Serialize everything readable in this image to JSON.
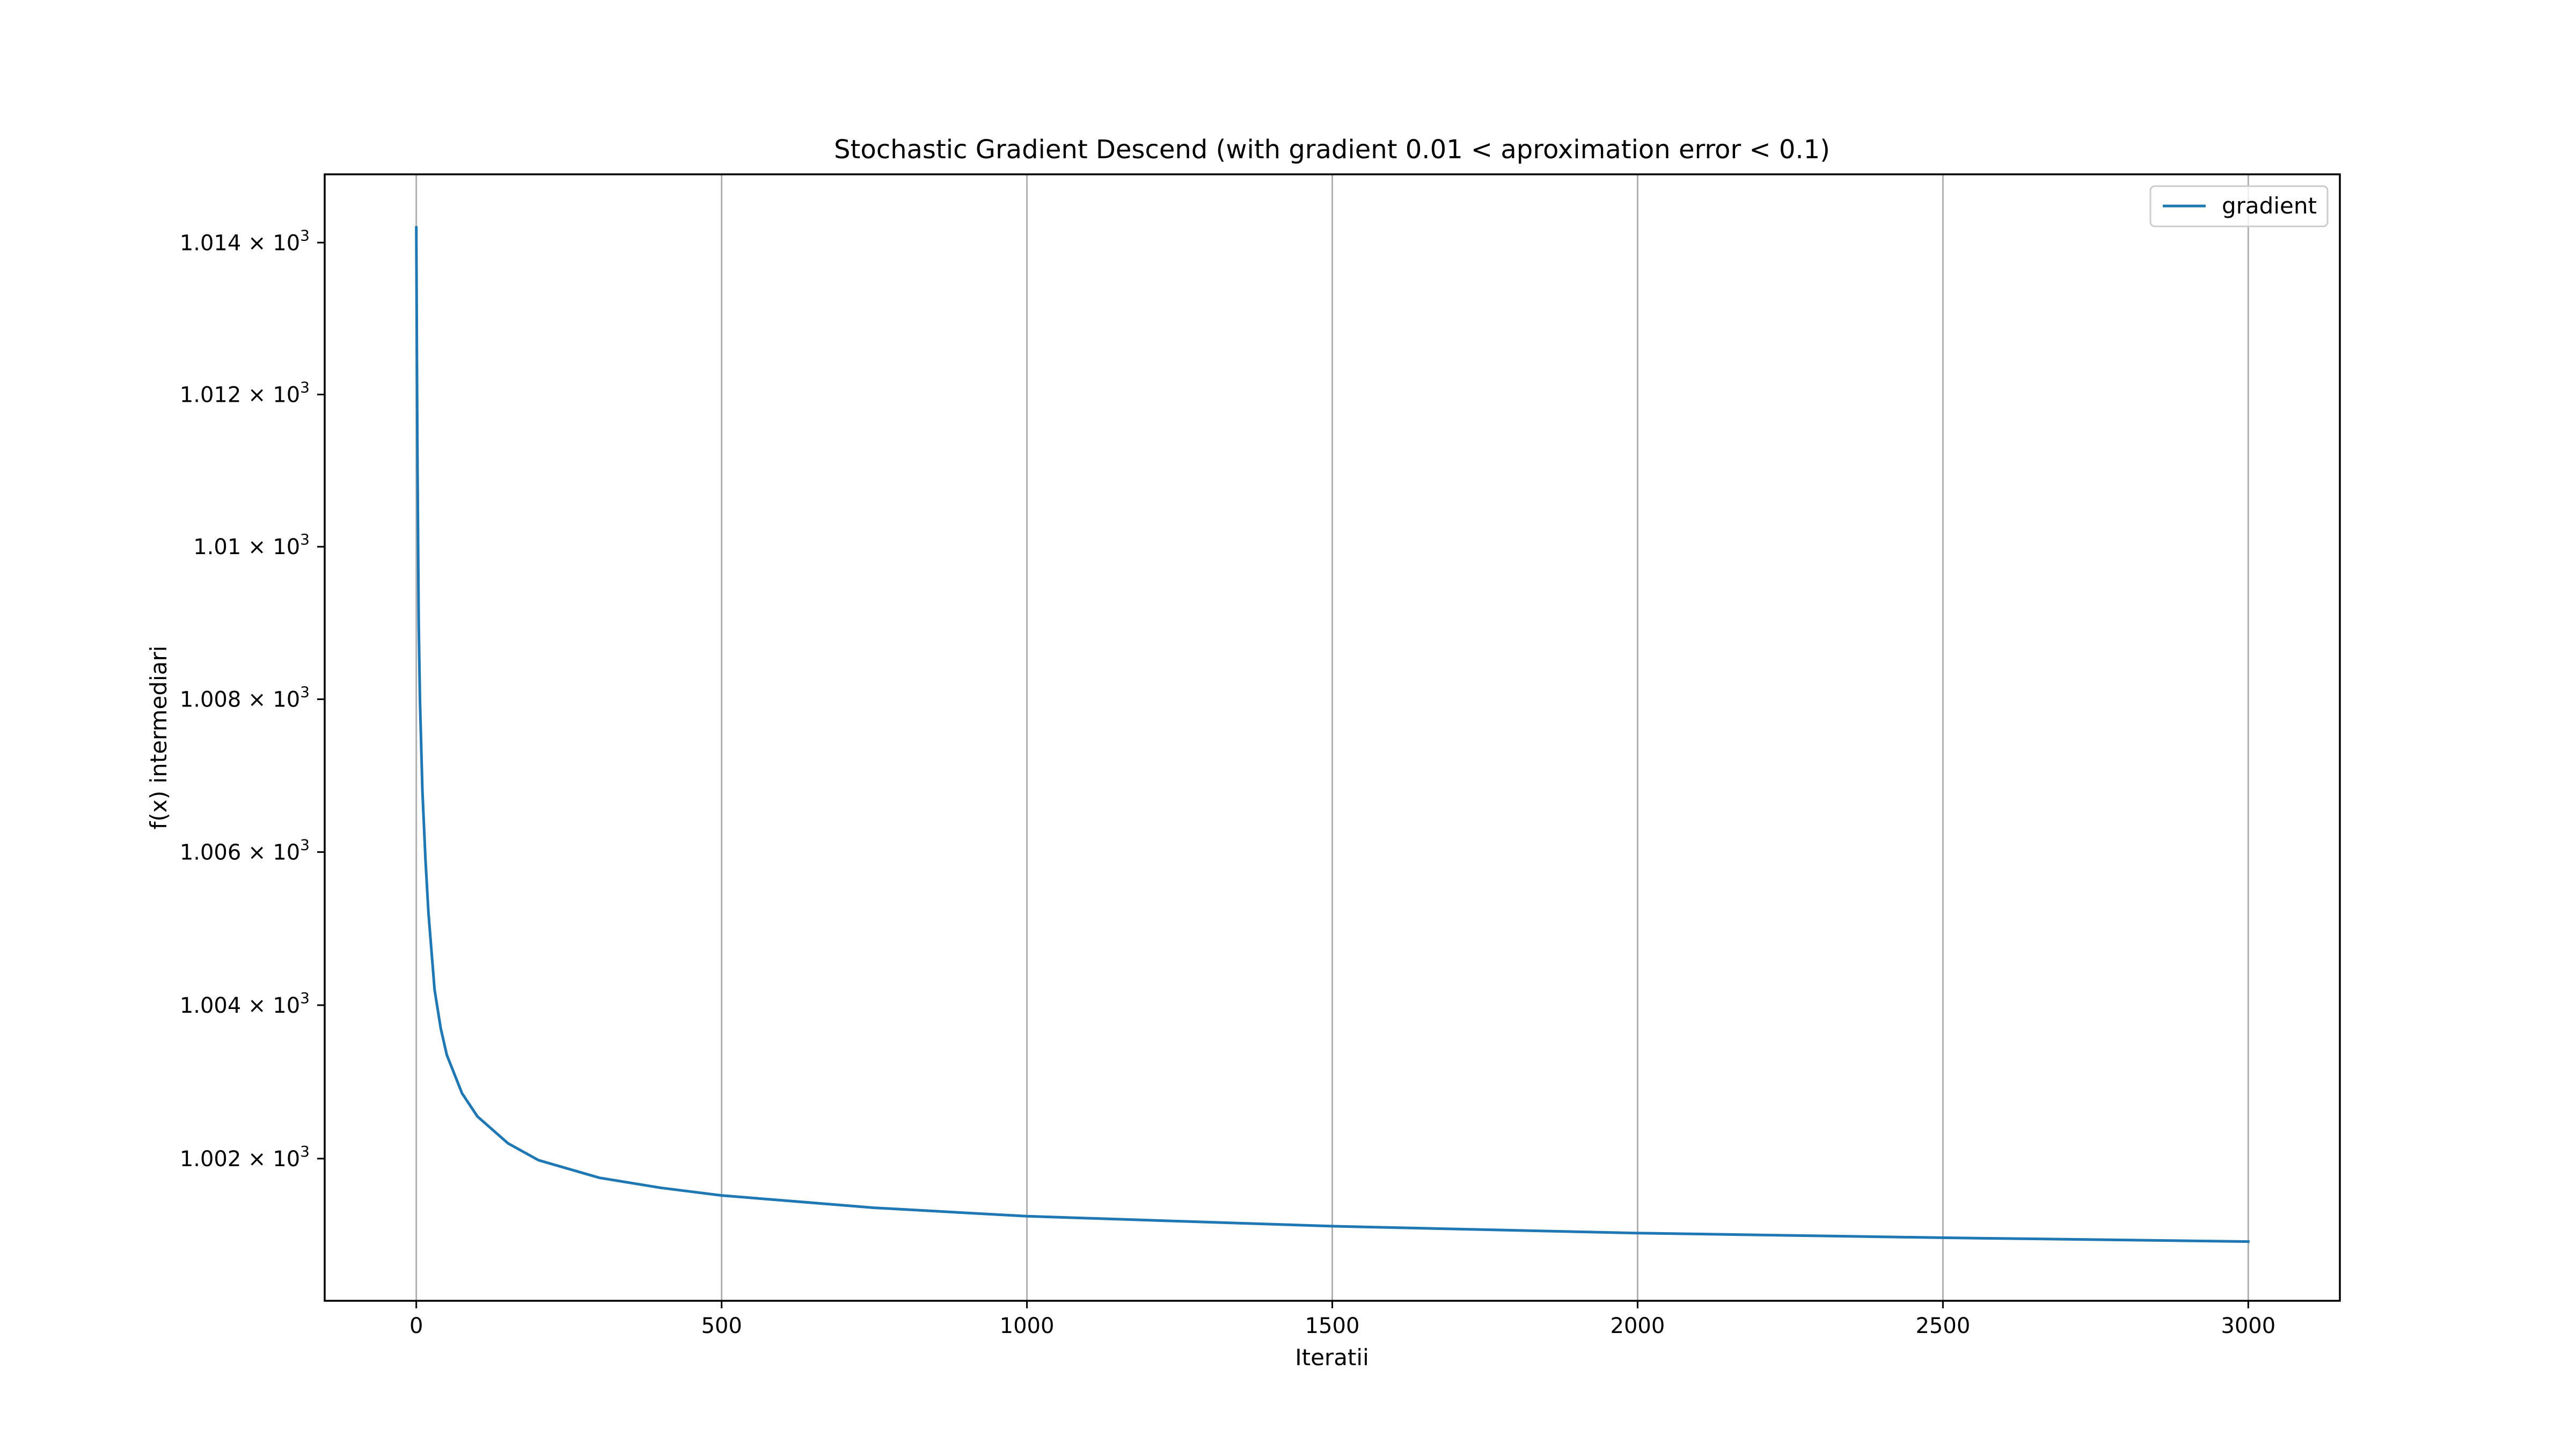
{
  "chart_data": {
    "type": "line",
    "title": "Stochastic Gradient Descend (with gradient 0.01 < aproximation error < 0.1)",
    "xlabel": "Iteratii",
    "ylabel": "f(x) intermediari",
    "xlim": [
      -150,
      3150
    ],
    "ylim": [
      1000.15,
      1014.9
    ],
    "y_scale": "log",
    "grid": "x-major",
    "legend_position": "top-right",
    "x_ticks": [
      0,
      500,
      1000,
      1500,
      2000,
      2500,
      3000
    ],
    "x_tick_labels": [
      "0",
      "500",
      "1000",
      "1500",
      "2000",
      "2500",
      "3000"
    ],
    "y_ticks": [
      1002,
      1004,
      1006,
      1008,
      1010,
      1012,
      1014
    ],
    "y_tick_labels": [
      {
        "mantissa": "1.002",
        "exponent": "3"
      },
      {
        "mantissa": "1.004",
        "exponent": "3"
      },
      {
        "mantissa": "1.006",
        "exponent": "3"
      },
      {
        "mantissa": "1.008",
        "exponent": "3"
      },
      {
        "mantissa": "1.01",
        "exponent": "3"
      },
      {
        "mantissa": "1.012",
        "exponent": "3"
      },
      {
        "mantissa": "1.014",
        "exponent": "3"
      }
    ],
    "series": [
      {
        "name": "gradient",
        "color": "#1f77b4",
        "x": [
          0,
          1,
          2,
          4,
          6,
          10,
          15,
          20,
          30,
          40,
          50,
          75,
          100,
          150,
          200,
          300,
          400,
          500,
          750,
          1000,
          1500,
          2000,
          2500,
          3000
        ],
        "y": [
          1014.2,
          1012.5,
          1011.0,
          1009.0,
          1008.0,
          1006.8,
          1005.9,
          1005.2,
          1004.2,
          1003.7,
          1003.35,
          1002.85,
          1002.55,
          1002.2,
          1001.98,
          1001.75,
          1001.62,
          1001.52,
          1001.36,
          1001.25,
          1001.12,
          1001.03,
          1000.97,
          1000.92
        ]
      }
    ]
  }
}
